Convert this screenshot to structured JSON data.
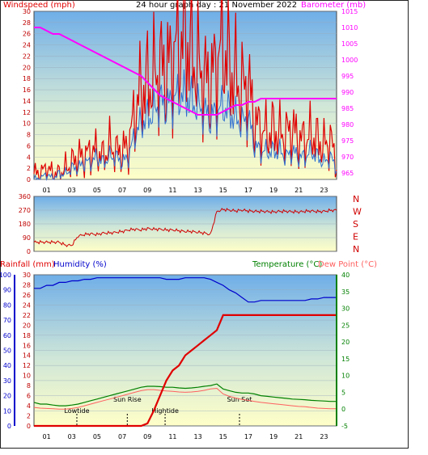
{
  "title": "24 hour graph day : 21 November 2022",
  "colors": {
    "wind": "#e00000",
    "gust": "#e00000",
    "windAvg": "#3070d0",
    "barometer": "#ff00ff",
    "direction": "#d00000",
    "humidity": "#0000cc",
    "rain": "#e00000",
    "temperature": "#008000",
    "dewpoint": "#ff6060"
  },
  "hour_ticks": [
    "01",
    "03",
    "05",
    "07",
    "09",
    "11",
    "13",
    "15",
    "17",
    "19",
    "21",
    "23"
  ],
  "chart_data": [
    {
      "id": "wind-baro",
      "type": "line",
      "ylabel_left": "Windspeed (mph)",
      "ylabel_right": "Barometer (mb)",
      "ylim_left": [
        0,
        30
      ],
      "ylim_right": [
        963,
        1015
      ],
      "yticks_left": [
        "0",
        "2",
        "4",
        "6",
        "8",
        "10",
        "12",
        "14",
        "16",
        "18",
        "20",
        "22",
        "24",
        "26",
        "28",
        "30"
      ],
      "yticks_right": [
        "965",
        "970",
        "975",
        "980",
        "985",
        "990",
        "995",
        "1000",
        "1005",
        "1010",
        "1015"
      ],
      "x_hours": [
        0,
        0.5,
        1,
        1.5,
        2,
        2.5,
        3,
        3.5,
        4,
        4.5,
        5,
        5.5,
        6,
        6.5,
        7,
        7.5,
        8,
        8.5,
        9,
        9.5,
        10,
        10.5,
        11,
        11.5,
        12,
        12.5,
        13,
        13.5,
        14,
        14.5,
        15,
        15.5,
        16,
        16.5,
        17,
        17.5,
        18,
        18.5,
        19,
        19.5,
        20,
        20.5,
        21,
        21.5,
        22,
        22.5,
        23,
        23.5,
        24
      ],
      "series": [
        {
          "key": "gust",
          "values": [
            1,
            1,
            2,
            1,
            1,
            2,
            3,
            4,
            4,
            5,
            5,
            4,
            6,
            5,
            5,
            6,
            12,
            16,
            17,
            18,
            20,
            19,
            22,
            24,
            26,
            22,
            20,
            18,
            17,
            21,
            24,
            20,
            18,
            16,
            17,
            10,
            9,
            8,
            9,
            8,
            8,
            9,
            7,
            7,
            8,
            7,
            6,
            7,
            3
          ]
        },
        {
          "key": "speed",
          "values": [
            0,
            0,
            1,
            0,
            1,
            1,
            2,
            2,
            3,
            3,
            4,
            3,
            4,
            4,
            3,
            4,
            8,
            10,
            11,
            12,
            14,
            13,
            14,
            15,
            15,
            14,
            13,
            12,
            11,
            12,
            13,
            12,
            11,
            10,
            11,
            6,
            5,
            5,
            5,
            5,
            4,
            5,
            4,
            4,
            5,
            4,
            3,
            4,
            2
          ]
        },
        {
          "key": "barometer",
          "values": [
            1010,
            1010,
            1009,
            1008,
            1008,
            1007,
            1006,
            1005,
            1004,
            1003,
            1002,
            1001,
            1000,
            999,
            998,
            997,
            996,
            995,
            993,
            991,
            989,
            988,
            987,
            986,
            985,
            984,
            983,
            983,
            983,
            983,
            984,
            985,
            986,
            986,
            987,
            987,
            988,
            988,
            988,
            988,
            988,
            988,
            988,
            988,
            988,
            988,
            988,
            988,
            988
          ]
        }
      ]
    },
    {
      "id": "direction",
      "type": "line",
      "yticks_left": [
        "0",
        "90",
        "180",
        "270",
        "360"
      ],
      "yticks_right": [
        "N",
        "W",
        "S",
        "E",
        "N"
      ],
      "ylim": [
        0,
        360
      ],
      "x_hours": [
        0,
        0.5,
        1,
        1.5,
        2,
        2.5,
        3,
        3.5,
        4,
        4.5,
        5,
        5.5,
        6,
        6.5,
        7,
        7.5,
        8,
        8.5,
        9,
        9.5,
        10,
        10.5,
        11,
        11.5,
        12,
        12.5,
        13,
        13.5,
        14,
        14.5,
        15,
        15.5,
        16,
        16.5,
        17,
        17.5,
        18,
        18.5,
        19,
        19.5,
        20,
        20.5,
        21,
        21.5,
        22,
        22.5,
        23,
        23.5,
        24
      ],
      "values": [
        60,
        60,
        60,
        60,
        60,
        40,
        40,
        100,
        110,
        115,
        110,
        120,
        120,
        125,
        130,
        140,
        145,
        140,
        150,
        145,
        145,
        140,
        140,
        135,
        130,
        130,
        125,
        120,
        110,
        260,
        275,
        270,
        265,
        270,
        265,
        262,
        262,
        260,
        258,
        262,
        262,
        260,
        258,
        262,
        265,
        260,
        262,
        268,
        270
      ]
    },
    {
      "id": "rain-hum-temp",
      "type": "line",
      "ylabel_left_1": "Rainfall (mm)",
      "ylabel_left_2": "Humidity (%)",
      "ylabel_right_1": "Temperature (°C)",
      "ylabel_right_2": "Dew Point (°C)",
      "yticks_humidity": [
        "0",
        "10",
        "20",
        "30",
        "40",
        "50",
        "60",
        "70",
        "80",
        "90",
        "100"
      ],
      "yticks_rain": [
        "0",
        "2",
        "4",
        "6",
        "8",
        "10",
        "12",
        "14",
        "16",
        "18",
        "20",
        "22",
        "24",
        "26",
        "28",
        "30"
      ],
      "yticks_temp": [
        "-5",
        "0",
        "5",
        "10",
        "15",
        "20",
        "25",
        "30",
        "35",
        "40"
      ],
      "ylim_humidity": [
        0,
        100
      ],
      "ylim_temp": [
        -5,
        40
      ],
      "annotations": [
        {
          "label": "Lowtide",
          "hour": 3.4
        },
        {
          "label": "Sun Rise",
          "hour": 7.4
        },
        {
          "label": "Hightide",
          "hour": 10.4
        },
        {
          "label": "Sun Set",
          "hour": 16.3
        }
      ],
      "x_hours": [
        0,
        0.5,
        1,
        1.5,
        2,
        2.5,
        3,
        3.5,
        4,
        4.5,
        5,
        5.5,
        6,
        6.5,
        7,
        7.5,
        8,
        8.5,
        9,
        9.5,
        10,
        10.5,
        11,
        11.5,
        12,
        12.5,
        13,
        13.5,
        14,
        14.5,
        15,
        15.5,
        16,
        16.5,
        17,
        17.5,
        18,
        18.5,
        19,
        19.5,
        20,
        20.5,
        21,
        21.5,
        22,
        22.5,
        23,
        23.5,
        24
      ],
      "series": [
        {
          "key": "humidity",
          "values": [
            91,
            91,
            93,
            93,
            95,
            95,
            96,
            96,
            97,
            97,
            98,
            98,
            98,
            98,
            98,
            98,
            98,
            98,
            98,
            98,
            98,
            97,
            97,
            97,
            98,
            98,
            98,
            98,
            97,
            95,
            93,
            90,
            88,
            85,
            82,
            82,
            83,
            83,
            83,
            83,
            83,
            83,
            83,
            83,
            84,
            84,
            85,
            85,
            85
          ]
        },
        {
          "key": "rain",
          "values": [
            0,
            0,
            0,
            0,
            0,
            0,
            0,
            0,
            0,
            0,
            0,
            0,
            0,
            0,
            0,
            0,
            0,
            0,
            0.5,
            3,
            6,
            9,
            11,
            12,
            14,
            15,
            16,
            17,
            18,
            19,
            22,
            22,
            22,
            22,
            22,
            22,
            22,
            22,
            22,
            22,
            22,
            22,
            22,
            22,
            22,
            22,
            22,
            22,
            22
          ]
        },
        {
          "key": "temperature",
          "values": [
            2,
            1.5,
            1.5,
            1.2,
            1,
            1,
            1.2,
            1.5,
            2,
            2.5,
            3,
            3.5,
            4,
            4.5,
            5,
            5.5,
            6,
            6.5,
            6.8,
            6.8,
            6.7,
            6.5,
            6.5,
            6.3,
            6.2,
            6.3,
            6.5,
            6.8,
            7,
            7.5,
            6,
            5.5,
            5,
            4.8,
            4.8,
            4.5,
            4,
            3.8,
            3.6,
            3.4,
            3.2,
            3,
            2.9,
            2.8,
            2.6,
            2.5,
            2.4,
            2.3,
            2.3
          ]
        },
        {
          "key": "dewpoint",
          "values": [
            0.5,
            0.3,
            0.2,
            0.1,
            0,
            0,
            0.2,
            0.5,
            1,
            1.5,
            2,
            2.5,
            3,
            3.5,
            4,
            4.5,
            5,
            5.5,
            5.8,
            5.8,
            5.6,
            5.4,
            5.3,
            5.1,
            5,
            5.1,
            5.3,
            5.6,
            6,
            6.2,
            4.5,
            3.8,
            3.3,
            2.9,
            2.6,
            2.3,
            2,
            1.8,
            1.6,
            1.4,
            1.2,
            1,
            0.8,
            0.7,
            0.5,
            0.3,
            0.2,
            0.1,
            0.1
          ]
        }
      ]
    }
  ]
}
